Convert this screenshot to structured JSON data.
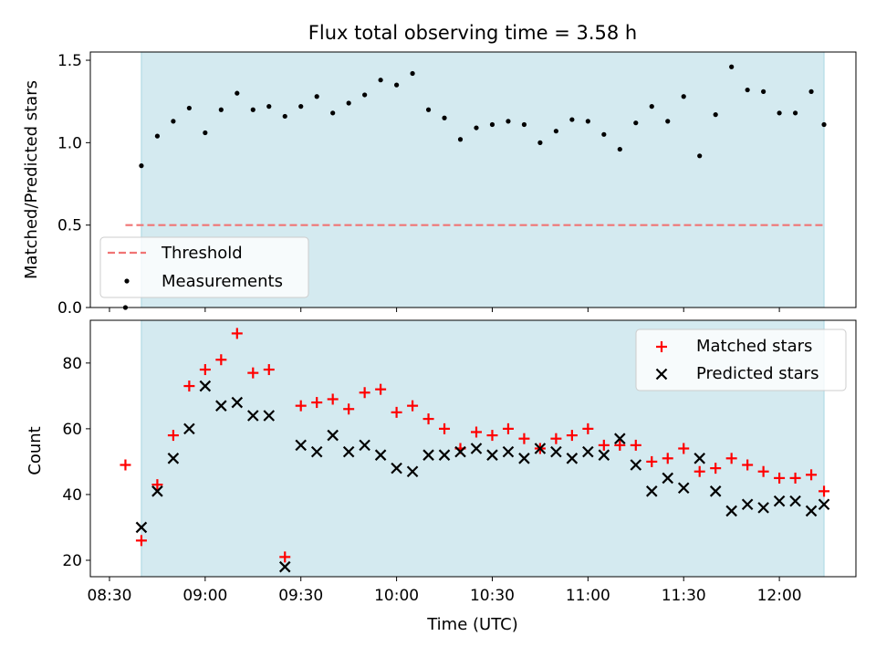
{
  "colors": {
    "shade": "#d4eaf0",
    "shade_edge": "#a9d6e2",
    "threshold": "#f07474",
    "matched": "#ff0000",
    "predicted": "#000000",
    "measurement": "#000000"
  },
  "chart_data": [
    {
      "type": "scatter",
      "title": "Flux total observing time = 3.58 h",
      "ylabel": "Matched/Predicted stars",
      "xlabel": "",
      "x_minutes_range": [
        504,
        744
      ],
      "ylim": [
        0.0,
        1.55
      ],
      "yticks": [
        0.0,
        0.5,
        1.0,
        1.5
      ],
      "ytick_labels": [
        "0.0",
        "0.5",
        "1.0",
        "1.5"
      ],
      "shaded_span_minutes": [
        520,
        734
      ],
      "threshold": {
        "label": "Threshold",
        "value": 0.5,
        "x_minutes": [
          515,
          734
        ]
      },
      "legend": {
        "position": "lower-left",
        "entries": [
          "Threshold",
          "Measurements"
        ]
      },
      "series": [
        {
          "name": "Measurements",
          "x_minutes": [
            515,
            520,
            525,
            530,
            535,
            540,
            545,
            550,
            555,
            560,
            565,
            570,
            575,
            580,
            585,
            590,
            595,
            600,
            605,
            610,
            615,
            620,
            625,
            630,
            635,
            640,
            645,
            650,
            655,
            660,
            665,
            670,
            675,
            680,
            685,
            690,
            695,
            700,
            705,
            710,
            715,
            720,
            725,
            730,
            734
          ],
          "values": [
            0.0,
            0.86,
            1.04,
            1.13,
            1.21,
            1.06,
            1.2,
            1.3,
            1.2,
            1.22,
            1.16,
            1.22,
            1.28,
            1.18,
            1.24,
            1.29,
            1.38,
            1.35,
            1.42,
            1.2,
            1.15,
            1.02,
            1.09,
            1.11,
            1.13,
            1.11,
            1.0,
            1.07,
            1.14,
            1.13,
            1.05,
            0.96,
            1.12,
            1.22,
            1.13,
            1.28,
            0.92,
            1.17,
            1.46,
            1.32,
            1.31,
            1.18,
            1.18,
            1.31,
            1.11
          ]
        }
      ]
    },
    {
      "type": "scatter",
      "title": "",
      "ylabel": "Count",
      "xlabel": "Time (UTC)",
      "x_minutes_range": [
        504,
        744
      ],
      "ylim": [
        15,
        93
      ],
      "yticks": [
        20,
        40,
        60,
        80
      ],
      "ytick_labels": [
        "20",
        "40",
        "60",
        "80"
      ],
      "xticks_minutes": [
        510,
        540,
        570,
        600,
        630,
        660,
        690,
        720
      ],
      "xtick_labels": [
        "08:30",
        "09:00",
        "09:30",
        "10:00",
        "10:30",
        "11:00",
        "11:30",
        "12:00"
      ],
      "shaded_span_minutes": [
        520,
        734
      ],
      "legend": {
        "position": "top-right",
        "entries": [
          "Matched stars",
          "Predicted stars"
        ]
      },
      "series": [
        {
          "name": "Matched stars",
          "marker": "plus",
          "x_minutes": [
            515,
            520,
            525,
            530,
            535,
            540,
            545,
            550,
            555,
            560,
            565,
            570,
            575,
            580,
            585,
            590,
            595,
            600,
            605,
            610,
            615,
            620,
            625,
            630,
            635,
            640,
            645,
            650,
            655,
            660,
            665,
            670,
            675,
            680,
            685,
            690,
            695,
            700,
            705,
            710,
            715,
            720,
            725,
            730,
            734
          ],
          "values": [
            49,
            26,
            43,
            58,
            73,
            78,
            81,
            89,
            77,
            78,
            21,
            67,
            68,
            69,
            66,
            71,
            72,
            65,
            67,
            63,
            60,
            54,
            59,
            58,
            60,
            57,
            54,
            57,
            58,
            60,
            55,
            55,
            55,
            50,
            51,
            54,
            47,
            48,
            51,
            49,
            47,
            45,
            45,
            46,
            41
          ]
        },
        {
          "name": "Predicted stars",
          "marker": "x",
          "x_minutes": [
            520,
            525,
            530,
            535,
            540,
            545,
            550,
            555,
            560,
            565,
            570,
            575,
            580,
            585,
            590,
            595,
            600,
            605,
            610,
            615,
            620,
            625,
            630,
            635,
            640,
            645,
            650,
            655,
            660,
            665,
            670,
            675,
            680,
            685,
            690,
            695,
            700,
            705,
            710,
            715,
            720,
            725,
            730,
            734
          ],
          "values": [
            30,
            41,
            51,
            60,
            73,
            67,
            68,
            64,
            64,
            18,
            55,
            53,
            58,
            53,
            55,
            52,
            48,
            47,
            52,
            52,
            53,
            54,
            52,
            53,
            51,
            54,
            53,
            51,
            53,
            52,
            57,
            49,
            41,
            45,
            42,
            51,
            41,
            35,
            37,
            36,
            38,
            38,
            35,
            37
          ]
        }
      ]
    }
  ]
}
